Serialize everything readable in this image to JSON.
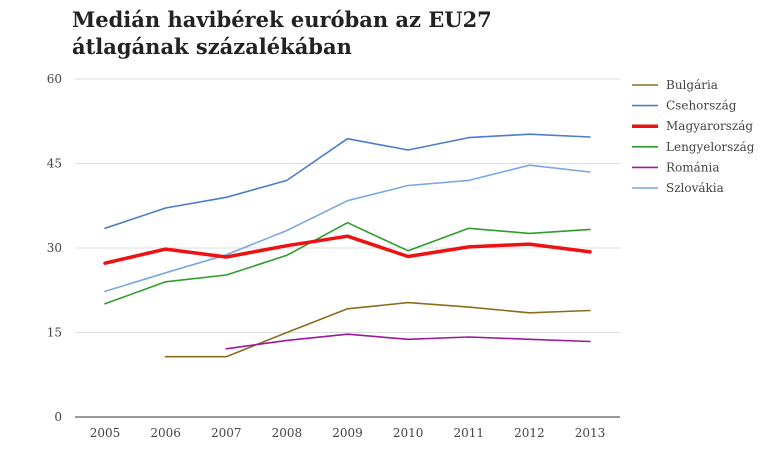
{
  "chart_data": {
    "type": "line",
    "title": "Medián havibérek euróban az EU27 átlagának százalékában",
    "xlabel": "",
    "ylabel": "",
    "x": [
      "2005",
      "2006",
      "2007",
      "2008",
      "2009",
      "2010",
      "2011",
      "2012",
      "2013"
    ],
    "ylim": [
      0,
      60
    ],
    "yticks": [
      0,
      15,
      30,
      45,
      60
    ],
    "grid": true,
    "legend_position": "right",
    "series": [
      {
        "name": "Bulgária",
        "color": "#8c6d1f",
        "emphasis": false,
        "values": [
          null,
          10.7,
          10.7,
          15.0,
          19.2,
          20.3,
          19.5,
          18.5,
          18.9
        ]
      },
      {
        "name": "Csehország",
        "color": "#4a7cc9",
        "emphasis": false,
        "values": [
          33.5,
          37.1,
          39.0,
          42.0,
          49.4,
          47.4,
          49.6,
          50.2,
          49.7
        ]
      },
      {
        "name": "Magyarország",
        "color": "#ee1111",
        "emphasis": true,
        "values": [
          27.3,
          29.8,
          28.4,
          30.4,
          32.1,
          28.5,
          30.2,
          30.7,
          29.3
        ]
      },
      {
        "name": "Lengyelország",
        "color": "#2d9e2d",
        "emphasis": false,
        "values": [
          20.1,
          24.0,
          25.2,
          28.7,
          34.5,
          29.5,
          33.5,
          32.6,
          33.3
        ]
      },
      {
        "name": "Románia",
        "color": "#9b1a9b",
        "emphasis": false,
        "values": [
          null,
          null,
          12.1,
          13.6,
          14.7,
          13.8,
          14.2,
          13.8,
          13.4
        ]
      },
      {
        "name": "Szlovákia",
        "color": "#7aa8de",
        "emphasis": false,
        "values": [
          22.3,
          25.6,
          28.8,
          33.1,
          38.4,
          41.1,
          42.0,
          44.7,
          43.5
        ]
      }
    ]
  }
}
